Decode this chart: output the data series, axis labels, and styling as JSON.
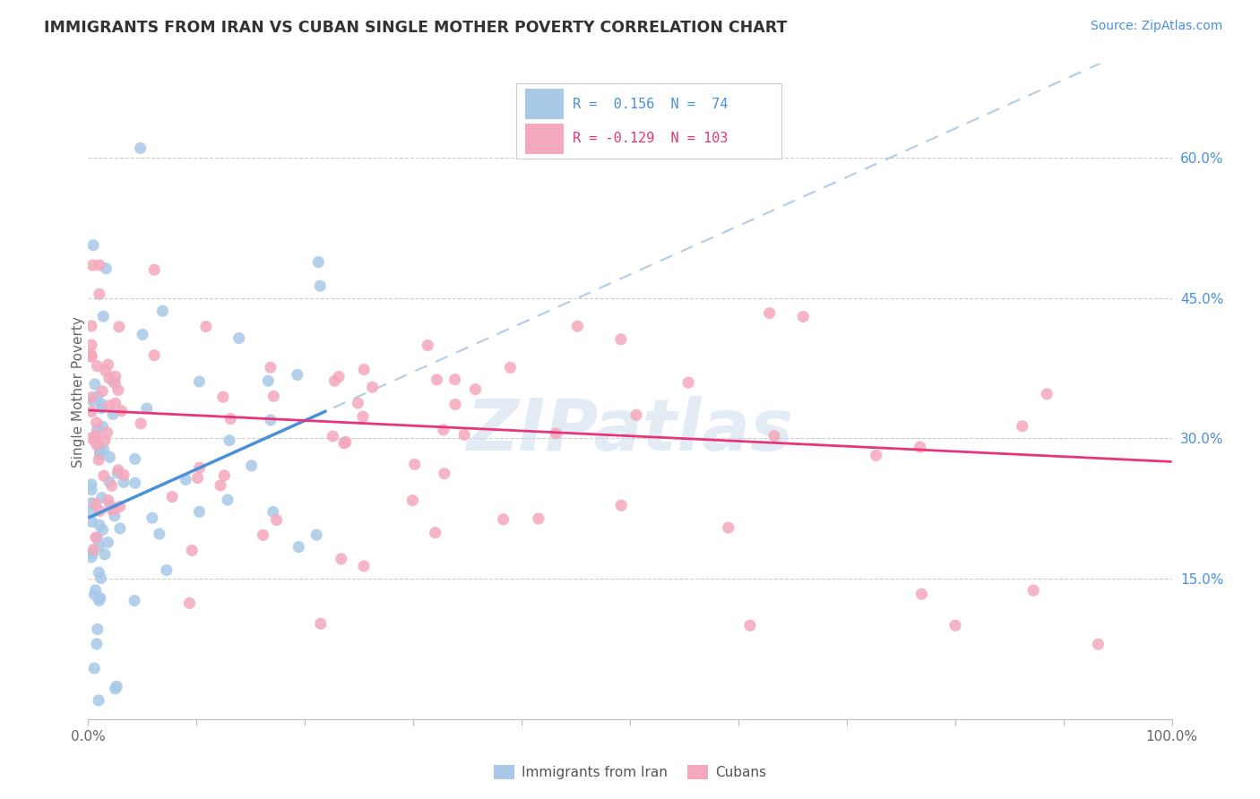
{
  "title": "IMMIGRANTS FROM IRAN VS CUBAN SINGLE MOTHER POVERTY CORRELATION CHART",
  "source": "Source: ZipAtlas.com",
  "ylabel": "Single Mother Poverty",
  "right_yticks": [
    "60.0%",
    "45.0%",
    "30.0%",
    "15.0%"
  ],
  "right_ytick_vals": [
    0.6,
    0.45,
    0.3,
    0.15
  ],
  "xlim": [
    0.0,
    1.0
  ],
  "ylim": [
    0.0,
    0.7
  ],
  "iran_R": 0.156,
  "iran_N": 74,
  "cuba_R": -0.129,
  "cuba_N": 103,
  "iran_line_color": "#4a90d9",
  "iran_dash_color": "#b0cce8",
  "cuba_line_color": "#e8357a",
  "scatter_iran_color": "#a8c8e8",
  "scatter_cuba_color": "#f4a8bc",
  "watermark": "ZIPatlas",
  "background_color": "#ffffff",
  "grid_color": "#cccccc",
  "grid_style": "--"
}
